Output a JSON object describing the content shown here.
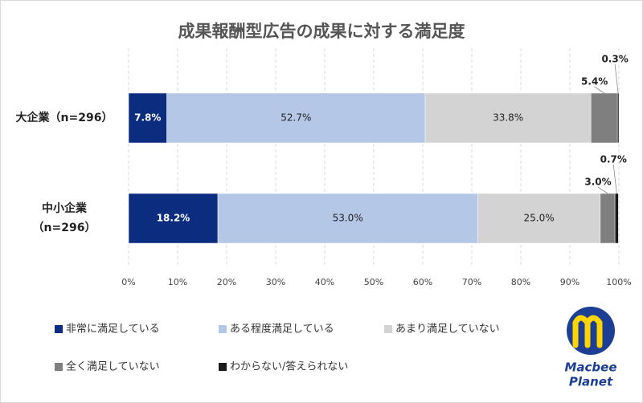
{
  "chart_data": {
    "type": "stacked-bar-horizontal",
    "title": "成果報酬型広告の成果に対する満足度",
    "categories": [
      "大企業（n=296）",
      "中小企業（n=296）"
    ],
    "series": [
      {
        "name": "非常に満足している",
        "color": "#0c2c80",
        "values": [
          7.8,
          18.2
        ],
        "value_labels": [
          "7.8%",
          "18.2%"
        ]
      },
      {
        "name": "ある程度満足している",
        "color": "#b4c7e7",
        "values": [
          52.7,
          53.0
        ],
        "value_labels": [
          "52.7%",
          "53.0%"
        ]
      },
      {
        "name": "あまり満足していない",
        "color": "#d3d3d3",
        "values": [
          33.8,
          25.0
        ],
        "value_labels": [
          "33.8%",
          "25.0%"
        ]
      },
      {
        "name": "全く満足していない",
        "color": "#7f7f7f",
        "values": [
          5.4,
          3.0
        ],
        "value_labels": [
          "5.4%",
          "3.0%"
        ]
      },
      {
        "name": "わからない/答えられない",
        "color": "#1a1a1a",
        "values": [
          0.3,
          0.7
        ],
        "value_labels": [
          "0.3%",
          "0.7%"
        ]
      }
    ],
    "xlim": [
      0,
      100
    ],
    "xticks": [
      {
        "value": 0,
        "label": "0%"
      },
      {
        "value": 10,
        "label": "10%"
      },
      {
        "value": 20,
        "label": "20%"
      },
      {
        "value": 30,
        "label": "30%"
      },
      {
        "value": 40,
        "label": "40%"
      },
      {
        "value": 50,
        "label": "50%"
      },
      {
        "value": 60,
        "label": "60%"
      },
      {
        "value": 70,
        "label": "70%"
      },
      {
        "value": 80,
        "label": "80%"
      },
      {
        "value": 90,
        "label": "90%"
      },
      {
        "value": 100,
        "label": "100%"
      }
    ],
    "grid": true
  },
  "logo": {
    "line1": "Macbee",
    "line2": "Planet"
  }
}
